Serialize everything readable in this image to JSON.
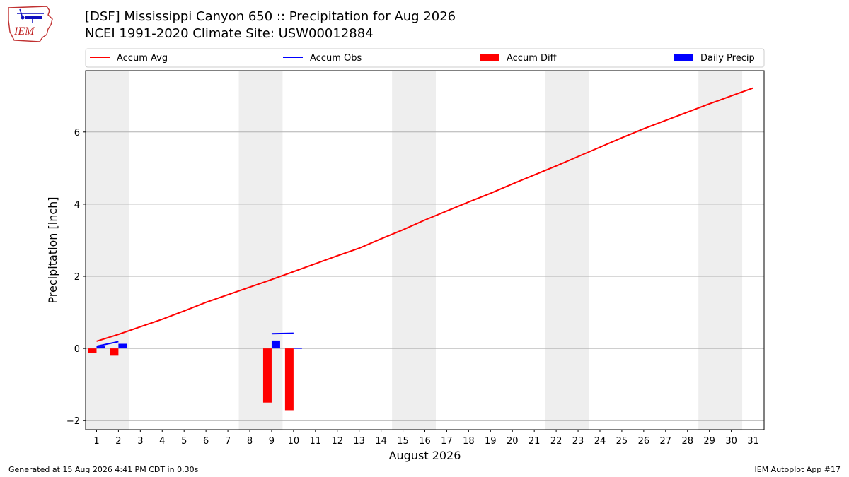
{
  "header": {
    "title_line1": "[DSF] Mississippi Canyon 650 :: Precipitation for Aug 2026",
    "title_line2": "NCEI 1991-2020 Climate Site: USW00012884"
  },
  "logo": {
    "text": "IEM",
    "icon": "iem-iowa-logo-icon"
  },
  "footer": {
    "left": "Generated at 15 Aug 2026 4:41 PM CDT in 0.30s",
    "right": "IEM Autoplot App #17"
  },
  "colors": {
    "avg": "#ff0000",
    "obs": "#0000ff",
    "diff": "#ff0000",
    "daily": "#0000ff",
    "weekend": "#eeeeee",
    "grid": "#b0b0b0"
  },
  "chart_data": {
    "type": "bar",
    "xlabel": "August 2026",
    "ylabel": "Precipitation [inch]",
    "xlim": [
      0.5,
      31.5
    ],
    "ylim": [
      -2.25,
      7.7
    ],
    "yticks": [
      -2,
      0,
      2,
      4,
      6
    ],
    "x_ticks": [
      1,
      2,
      3,
      4,
      5,
      6,
      7,
      8,
      9,
      10,
      11,
      12,
      13,
      14,
      15,
      16,
      17,
      18,
      19,
      20,
      21,
      22,
      23,
      24,
      25,
      26,
      27,
      28,
      29,
      30,
      31
    ],
    "grid": "horizontal",
    "legend_placement": "top",
    "weekend_spans": [
      [
        0.5,
        2.5
      ],
      [
        7.5,
        9.5
      ],
      [
        14.5,
        16.5
      ],
      [
        21.5,
        23.5
      ],
      [
        28.5,
        30.5
      ]
    ],
    "legend": [
      "Accum Avg",
      "Accum Obs",
      "Accum Diff",
      "Daily Precip"
    ],
    "accum_avg": {
      "x": [
        1,
        2,
        3,
        4,
        5,
        6,
        7,
        8,
        9,
        10,
        11,
        12,
        13,
        14,
        15,
        16,
        17,
        18,
        19,
        20,
        21,
        22,
        23,
        24,
        25,
        26,
        27,
        28,
        29,
        30,
        31
      ],
      "values": [
        0.2,
        0.39,
        0.6,
        0.81,
        1.04,
        1.28,
        1.49,
        1.7,
        1.91,
        2.13,
        2.35,
        2.57,
        2.78,
        3.04,
        3.29,
        3.56,
        3.81,
        4.06,
        4.3,
        4.56,
        4.81,
        5.06,
        5.32,
        5.58,
        5.84,
        6.09,
        6.32,
        6.55,
        6.78,
        7.0,
        7.22
      ]
    },
    "accum_obs": {
      "x": [
        1,
        2,
        9,
        10
      ],
      "values": [
        0.06,
        0.19,
        0.41,
        0.42
      ]
    },
    "accum_diff": {
      "x": [
        1,
        2,
        9,
        10
      ],
      "values": [
        -0.13,
        -0.2,
        -1.5,
        -1.71
      ]
    },
    "daily_precip": {
      "x": [
        1,
        2,
        9,
        10
      ],
      "values": [
        0.06,
        0.13,
        0.22,
        0.01
      ]
    }
  }
}
